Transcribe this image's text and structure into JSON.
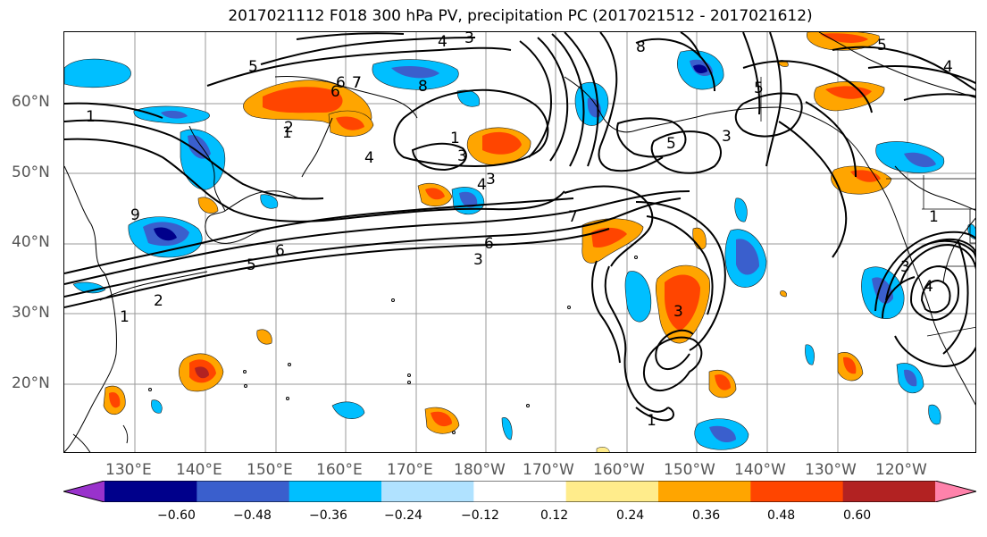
{
  "title": "2017021112 F018 300 hPa PV, precipitation PC (2017021512 - 2017021612)",
  "lat_labels": [
    "60°N",
    "50°N",
    "40°N",
    "30°N",
    "20°N"
  ],
  "lon_labels": [
    "130°E",
    "140°E",
    "150°E",
    "160°E",
    "170°E",
    "180°W",
    "170°W",
    "160°W",
    "150°W",
    "140°W",
    "130°W",
    "120°W"
  ],
  "contour_labels": [
    "4",
    "3",
    "6",
    "7",
    "8",
    "5",
    "6",
    "7",
    "1",
    "2",
    "1",
    "3",
    "4",
    "1",
    "8",
    "5",
    "5",
    "3",
    "4",
    "3",
    "6",
    "7",
    "5",
    "4",
    "6",
    "3",
    "2",
    "1",
    "9",
    "3",
    "1",
    "1",
    "3",
    "4",
    "5"
  ],
  "colorbar": {
    "ticks": [
      "−0.60",
      "−0.48",
      "−0.36",
      "−0.24",
      "−0.12",
      "0.12",
      "0.24",
      "0.36",
      "0.48",
      "0.60"
    ],
    "colors": [
      "#9932cc",
      "#00008b",
      "#3a5fcd",
      "#00bfff",
      "#b0e2ff",
      "#ffffff",
      "#ffec8b",
      "#ffa500",
      "#ff4500",
      "#b22222",
      "#ff82ab"
    ]
  },
  "colors": {
    "neg_weak": "#00bfff",
    "neg_mid": "#3a5fcd",
    "neg_strong": "#00008b",
    "pos_weak": "#ffa500",
    "pos_mid": "#ff4500",
    "pos_strong": "#b22222",
    "pos_light": "#ffec8b"
  }
}
